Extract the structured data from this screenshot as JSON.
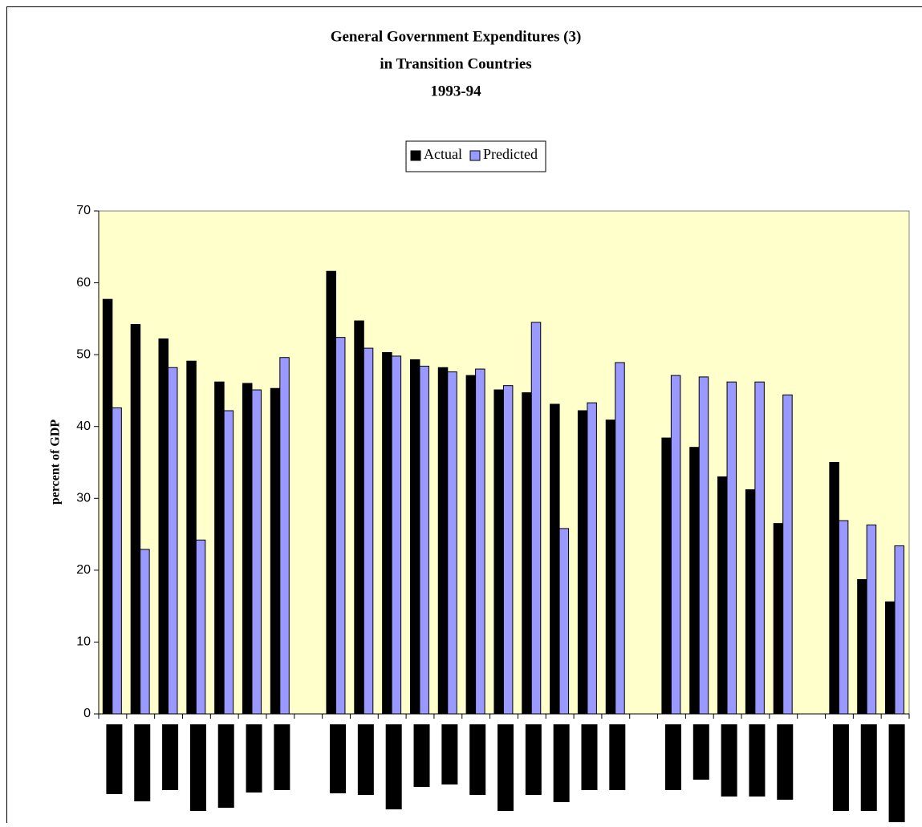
{
  "chart_data": {
    "type": "bar",
    "title": [
      "General Government Expenditures (3)",
      "in Transition Countries",
      "1993-94"
    ],
    "y_label": "percent of GDP",
    "categories": [
      null,
      null,
      null,
      null,
      null,
      null,
      null,
      null,
      null,
      null,
      null,
      null,
      null,
      null,
      null,
      null,
      null,
      null,
      null,
      null,
      null,
      null,
      null,
      null,
      null,
      null,
      null,
      null,
      null
    ],
    "series": [
      {
        "name": "Actual",
        "color": "#000000",
        "values": [
          57.7,
          54.2,
          52.2,
          49.1,
          46.2,
          46.0,
          45.3,
          null,
          61.6,
          54.7,
          50.3,
          49.3,
          48.2,
          47.1,
          45.1,
          44.7,
          43.1,
          42.2,
          40.9,
          null,
          38.4,
          37.1,
          33.0,
          31.2,
          26.5,
          null,
          35.0,
          18.7,
          15.6
        ]
      },
      {
        "name": "Predicted",
        "color": "#9999ff",
        "values": [
          42.6,
          22.9,
          48.2,
          24.2,
          42.2,
          45.1,
          49.6,
          null,
          52.4,
          50.9,
          49.8,
          48.4,
          47.6,
          48.0,
          45.7,
          54.5,
          25.8,
          43.3,
          48.9,
          null,
          47.1,
          46.9,
          46.2,
          46.2,
          44.4,
          null,
          26.9,
          26.3,
          23.4
        ]
      }
    ],
    "ylim": [
      0,
      70
    ],
    "yticks": [
      0,
      10,
      20,
      30,
      40,
      50,
      60,
      70
    ],
    "grid": false,
    "legend": "top",
    "plot_background": "#ffffcc"
  }
}
